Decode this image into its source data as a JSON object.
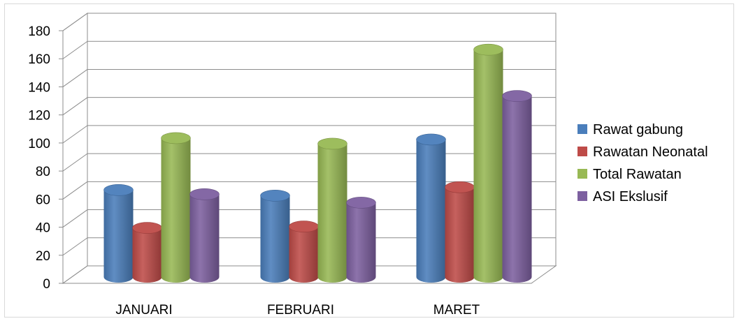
{
  "chart_data": {
    "type": "bar",
    "style": "3d-cylinder",
    "categories": [
      "JANUARI",
      "FEBRUARI",
      "MARET"
    ],
    "series": [
      {
        "name": "Rawat gabung",
        "color": "#4a7ebb",
        "values": [
          62,
          58,
          98
        ]
      },
      {
        "name": "Rawatan Neonatal",
        "color": "#be4b48",
        "values": [
          35,
          36,
          64
        ]
      },
      {
        "name": "Total Rawatan",
        "color": "#98b954",
        "values": [
          99,
          95,
          162
        ]
      },
      {
        "name": "ASI Ekslusif",
        "color": "#7d60a0",
        "values": [
          59,
          53,
          129
        ]
      }
    ],
    "y_ticks": [
      "0",
      "20",
      "40",
      "60",
      "80",
      "100",
      "120",
      "140",
      "160",
      "180"
    ],
    "ylim": [
      0,
      180
    ],
    "grid": true,
    "legend_position": "right"
  }
}
